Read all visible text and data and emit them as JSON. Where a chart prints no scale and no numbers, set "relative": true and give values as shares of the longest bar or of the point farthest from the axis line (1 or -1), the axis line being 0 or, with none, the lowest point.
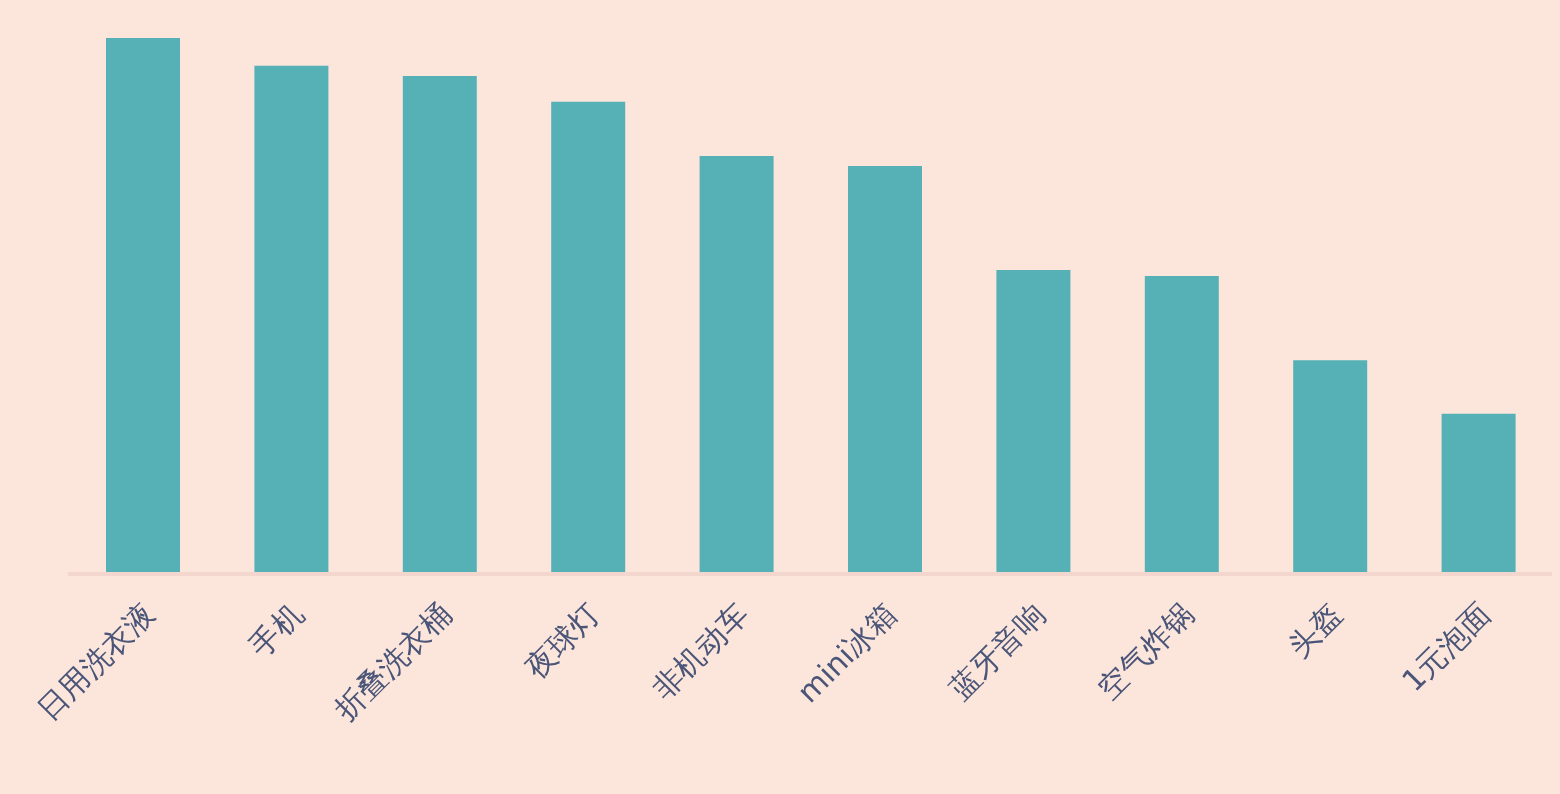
{
  "chart_data": {
    "type": "bar",
    "relative": true,
    "categories": [
      "日用洗衣液",
      "手机",
      "折叠洗衣桶",
      "夜球灯",
      "非机动车",
      "mini冰箱",
      "蓝牙音响",
      "空气炸锅",
      "头盔",
      "1元泡面"
    ],
    "values": [
      1,
      0.948,
      0.929,
      0.881,
      0.78,
      0.761,
      0.567,
      0.556,
      0.399,
      0.299
    ],
    "color": "#55b1b6",
    "grid": false,
    "legend": false
  }
}
